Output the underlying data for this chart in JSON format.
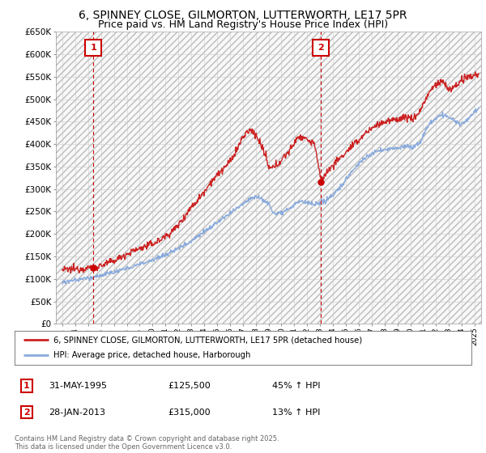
{
  "title1": "6, SPINNEY CLOSE, GILMORTON, LUTTERWORTH, LE17 5PR",
  "title2": "Price paid vs. HM Land Registry's House Price Index (HPI)",
  "ylim": [
    0,
    650000
  ],
  "yticks": [
    0,
    50000,
    100000,
    150000,
    200000,
    250000,
    300000,
    350000,
    400000,
    450000,
    500000,
    550000,
    600000,
    650000
  ],
  "ytick_labels": [
    "£0",
    "£50K",
    "£100K",
    "£150K",
    "£200K",
    "£250K",
    "£300K",
    "£350K",
    "£400K",
    "£450K",
    "£500K",
    "£550K",
    "£600K",
    "£650K"
  ],
  "xlim_start": 1992.5,
  "xlim_end": 2025.5,
  "background_color": "#ffffff",
  "plot_bg_color": "#ffffff",
  "hatch_color": "#dddddd",
  "grid_color": "#cccccc",
  "transaction1_x": 1995.42,
  "transaction1_y": 125500,
  "transaction2_x": 2013.08,
  "transaction2_y": 315000,
  "marker1_top_y": 620000,
  "marker2_top_y": 620000,
  "vline_color": "#cc0000",
  "red_line_color": "#cc2222",
  "blue_line_color": "#88aadd",
  "legend_label_red": "6, SPINNEY CLOSE, GILMORTON, LUTTERWORTH, LE17 5PR (detached house)",
  "legend_label_blue": "HPI: Average price, detached house, Harborough",
  "transaction_label1": "31-MAY-1995",
  "transaction_price1": "£125,500",
  "transaction_hpi1": "45% ↑ HPI",
  "transaction_label2": "28-JAN-2013",
  "transaction_price2": "£315,000",
  "transaction_hpi2": "13% ↑ HPI",
  "footer": "Contains HM Land Registry data © Crown copyright and database right 2025.\nThis data is licensed under the Open Government Licence v3.0.",
  "marker1_label": "1",
  "marker2_label": "2",
  "title1_fontsize": 10,
  "title2_fontsize": 9
}
